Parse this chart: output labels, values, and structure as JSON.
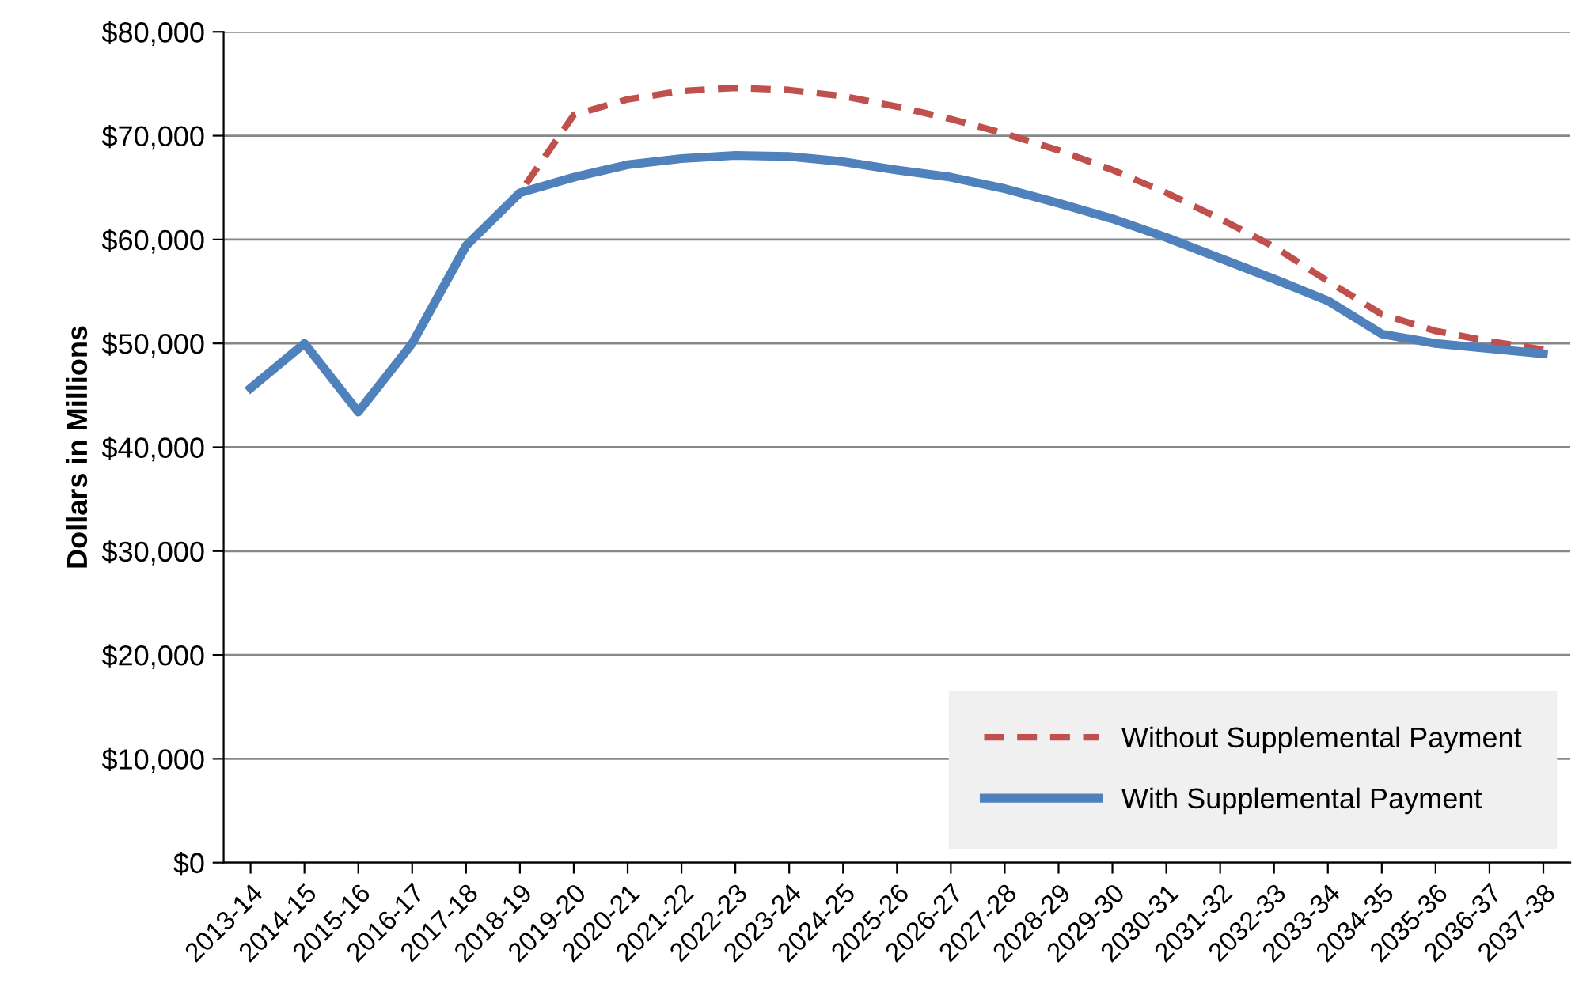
{
  "chart_data": {
    "type": "line",
    "ylabel": "Dollars in Millions",
    "categories": [
      "2013-14",
      "2014-15",
      "2015-16",
      "2016-17",
      "2017-18",
      "2018-19",
      "2019-20",
      "2020-21",
      "2021-22",
      "2022-23",
      "2023-24",
      "2024-25",
      "2025-26",
      "2026-27",
      "2027-28",
      "2028-29",
      "2029-30",
      "2030-31",
      "2031-32",
      "2032-33",
      "2033-34",
      "2034-35",
      "2035-36",
      "2036-37",
      "2037-38"
    ],
    "series": [
      {
        "name": "Without Supplemental Payment",
        "color": "#c0504d",
        "line_style": "dashed",
        "values": [
          null,
          null,
          null,
          null,
          null,
          64500,
          72000,
          73500,
          74300,
          74600,
          74400,
          73800,
          72800,
          71600,
          70200,
          68600,
          66700,
          64500,
          62000,
          59300,
          56000,
          52800,
          51200,
          50200,
          49400
        ]
      },
      {
        "name": "With Supplemental Payment",
        "color": "#4f81bd",
        "line_style": "solid",
        "values": [
          45700,
          50000,
          43400,
          50000,
          59400,
          64500,
          66000,
          67200,
          67800,
          68100,
          68000,
          67500,
          66700,
          66000,
          64900,
          63500,
          62000,
          60200,
          58200,
          56200,
          54100,
          50900,
          50000,
          49500,
          49000
        ]
      }
    ],
    "ylim": [
      0,
      80000
    ],
    "yticks": [
      {
        "value": 0,
        "label": "$0"
      },
      {
        "value": 10000,
        "label": "$10,000"
      },
      {
        "value": 20000,
        "label": "$20,000"
      },
      {
        "value": 30000,
        "label": "$30,000"
      },
      {
        "value": 40000,
        "label": "$40,000"
      },
      {
        "value": 50000,
        "label": "$50,000"
      },
      {
        "value": 60000,
        "label": "$60,000"
      },
      {
        "value": 70000,
        "label": "$70,000"
      },
      {
        "value": 80000,
        "label": "$80,000"
      }
    ],
    "grid": "y",
    "legend": "bottom right",
    "marker": "none"
  }
}
